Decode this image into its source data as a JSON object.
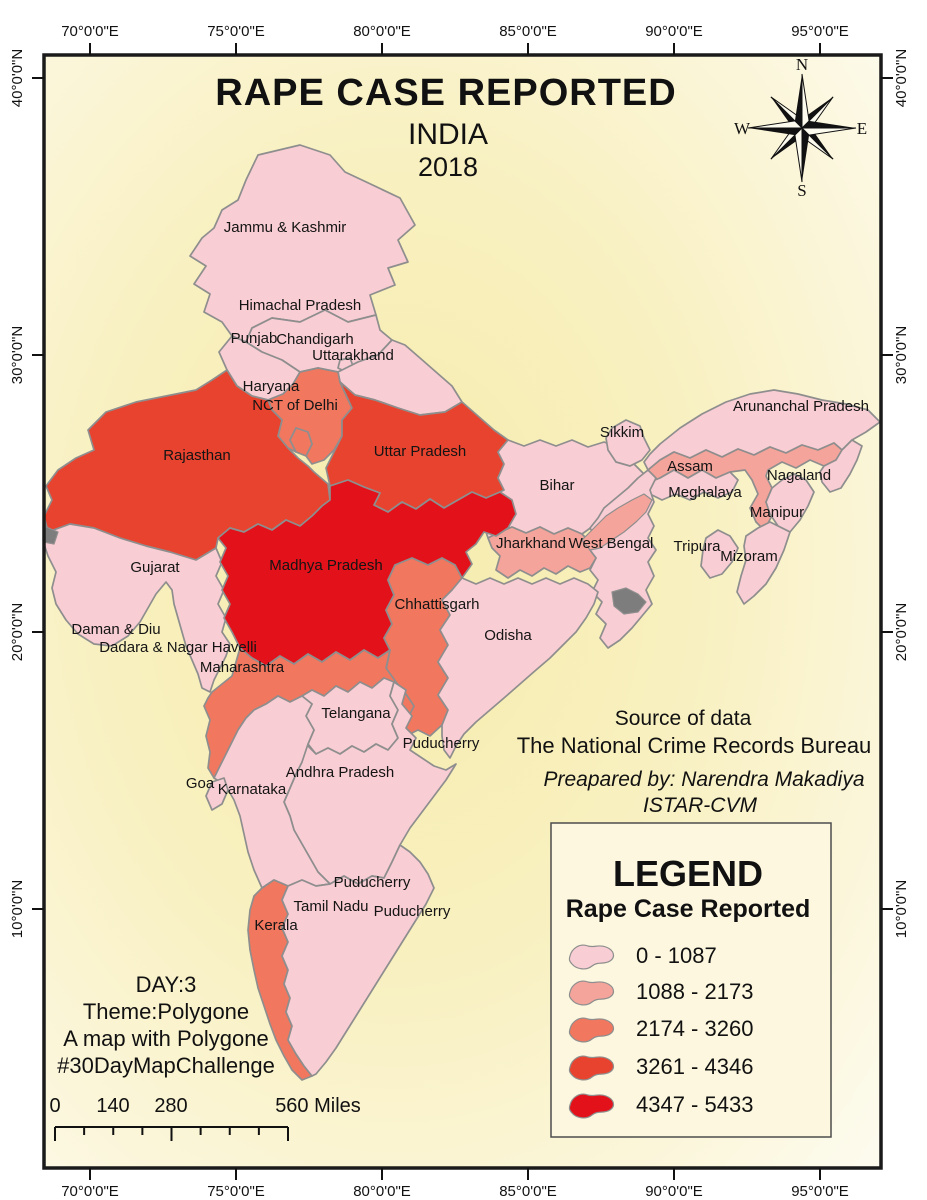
{
  "title": {
    "line1": "RAPE CASE REPORTED",
    "line2": "INDIA",
    "line3": "2018"
  },
  "compass": {
    "n": "N",
    "e": "E",
    "s": "S",
    "w": "W"
  },
  "axes": {
    "top": [
      "70°0'0\"E",
      "75°0'0\"E",
      "80°0'0\"E",
      "85°0'0\"E",
      "90°0'0\"E",
      "95°0'0\"E"
    ],
    "bottom": [
      "70°0'0\"E",
      "75°0'0\"E",
      "80°0'0\"E",
      "85°0'0\"E",
      "90°0'0\"E",
      "95°0'0\"E"
    ],
    "left": [
      "40°0'0\"N",
      "30°0'0\"N",
      "20°0'0\"N",
      "10°0'0\"N"
    ],
    "right": [
      "40°0'0\"N",
      "30°0'0\"N",
      "20°0'0\"N",
      "10°0'0\"N"
    ]
  },
  "source": {
    "line1": "Source of data",
    "line2": "The National Crime Records Bureau",
    "prepared1": "Preapared by: Narendra Makadiya",
    "prepared2": "ISTAR-CVM"
  },
  "challenge": {
    "line1": "DAY:3",
    "line2": "Theme:Polygone",
    "line3": "A map with Polygone",
    "line4": "#30DayMapChallenge"
  },
  "scale_bar": {
    "labels": [
      "0",
      "140",
      "280",
      "560 Miles"
    ]
  },
  "legend": {
    "title": "LEGEND",
    "subtitle": "Rape Case Reported",
    "classes": [
      {
        "label": "0 - 1087",
        "color": "#f8cdd3"
      },
      {
        "label": "1088 - 2173",
        "color": "#f5a49b"
      },
      {
        "label": "2174 - 3260",
        "color": "#f1775f"
      },
      {
        "label": "3261 - 4346",
        "color": "#e8432e"
      },
      {
        "label": "4347 - 5433",
        "color": "#e31119"
      }
    ]
  },
  "map": {
    "states": [
      {
        "id": "jammu-kashmir",
        "name": "Jammu & Kashmir",
        "class": 1
      },
      {
        "id": "himachal-pradesh",
        "name": "Himachal Pradesh",
        "class": 1
      },
      {
        "id": "punjab",
        "name": "Punjab",
        "class": 1
      },
      {
        "id": "chandigarh",
        "name": "Chandigarh",
        "class": 1
      },
      {
        "id": "uttarakhand",
        "name": "Uttarakhand",
        "class": 1
      },
      {
        "id": "haryana",
        "name": "Haryana",
        "class": 3
      },
      {
        "id": "nct-of-delhi",
        "name": "NCT of Delhi",
        "class": 3
      },
      {
        "id": "rajasthan",
        "name": "Rajasthan",
        "class": 4
      },
      {
        "id": "uttar-pradesh",
        "name": "Uttar Pradesh",
        "class": 4
      },
      {
        "id": "bihar",
        "name": "Bihar",
        "class": 1
      },
      {
        "id": "sikkim",
        "name": "Sikkim",
        "class": 1
      },
      {
        "id": "arunanchal-pradesh",
        "name": "Arunanchal Pradesh",
        "class": 1
      },
      {
        "id": "assam",
        "name": "Assam",
        "class": 2
      },
      {
        "id": "meghalaya",
        "name": "Meghalaya",
        "class": 1
      },
      {
        "id": "nagaland",
        "name": "Nagaland",
        "class": 1
      },
      {
        "id": "manipur",
        "name": "Manipur",
        "class": 1
      },
      {
        "id": "mizoram",
        "name": "Mizoram",
        "class": 1
      },
      {
        "id": "tripura",
        "name": "Tripura",
        "class": 1
      },
      {
        "id": "west-bengal",
        "name": "West Bengal",
        "class": 1
      },
      {
        "id": "jharkhand",
        "name": "Jharkhand",
        "class": 2
      },
      {
        "id": "gujarat",
        "name": "Gujarat",
        "class": 1
      },
      {
        "id": "madhya-pradesh",
        "name": "Madhya Pradesh",
        "class": 5
      },
      {
        "id": "chhattisgarh",
        "name": "Chhattisgarh",
        "class": 3
      },
      {
        "id": "odisha",
        "name": "Odisha",
        "class": 1
      },
      {
        "id": "maharashtra",
        "name": "Maharashtra",
        "class": 3
      },
      {
        "id": "telangana",
        "name": "Telangana",
        "class": 1
      },
      {
        "id": "andhra-pradesh",
        "name": "Andhra Pradesh",
        "class": 1
      },
      {
        "id": "karnataka",
        "name": "Karnataka",
        "class": 1
      },
      {
        "id": "goa",
        "name": "Goa",
        "class": 1
      },
      {
        "id": "kerala",
        "name": "Kerala",
        "class": 3
      },
      {
        "id": "tamil-nadu",
        "name": "Tamil Nadu",
        "class": 1
      }
    ],
    "territory_labels": [
      {
        "id": "daman-diu",
        "text": "Daman & Diu"
      },
      {
        "id": "dadara-nagar-havelli",
        "text": "Dadara & Nagar Havelli"
      },
      {
        "id": "puducherry-yanam",
        "text": "Puducherry"
      },
      {
        "id": "puducherry-inland",
        "text": "Puducherry"
      },
      {
        "id": "puducherry-coast",
        "text": "Puducherry"
      }
    ]
  }
}
